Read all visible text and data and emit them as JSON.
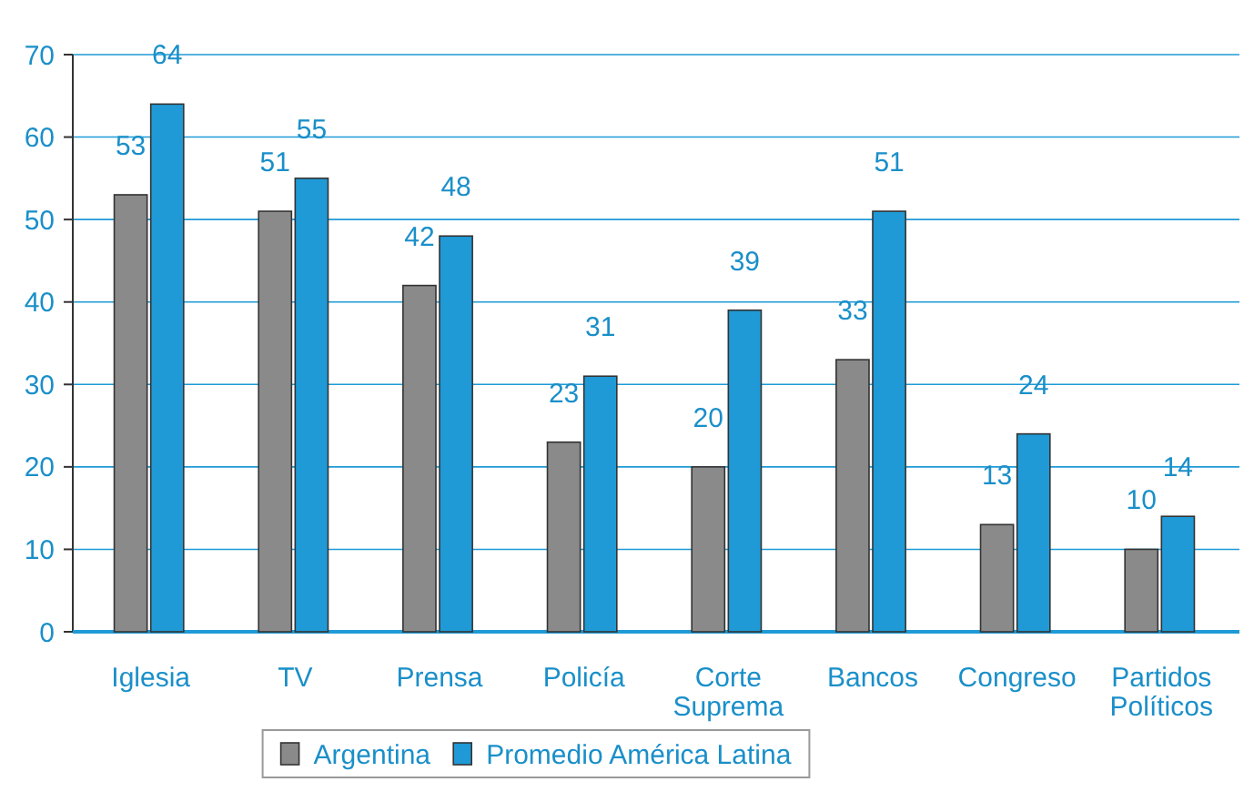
{
  "chart_data": {
    "type": "bar",
    "categories": [
      "Iglesia",
      "TV",
      "Prensa",
      "Policía",
      "Corte Suprema",
      "Bancos",
      "Congreso",
      "Partidos Políticos"
    ],
    "series": [
      {
        "name": "Argentina",
        "color": "#8a8a8a",
        "values": [
          53,
          51,
          42,
          23,
          20,
          33,
          13,
          10
        ]
      },
      {
        "name": "Promedio América Latina",
        "color": "#1f9ad6",
        "values": [
          64,
          55,
          48,
          31,
          39,
          51,
          24,
          14
        ]
      }
    ],
    "ylim": [
      0,
      70
    ],
    "yticks": [
      0,
      10,
      20,
      30,
      40,
      50,
      60,
      70
    ],
    "grid": "y",
    "legend": "bottom",
    "data_labels": true
  }
}
